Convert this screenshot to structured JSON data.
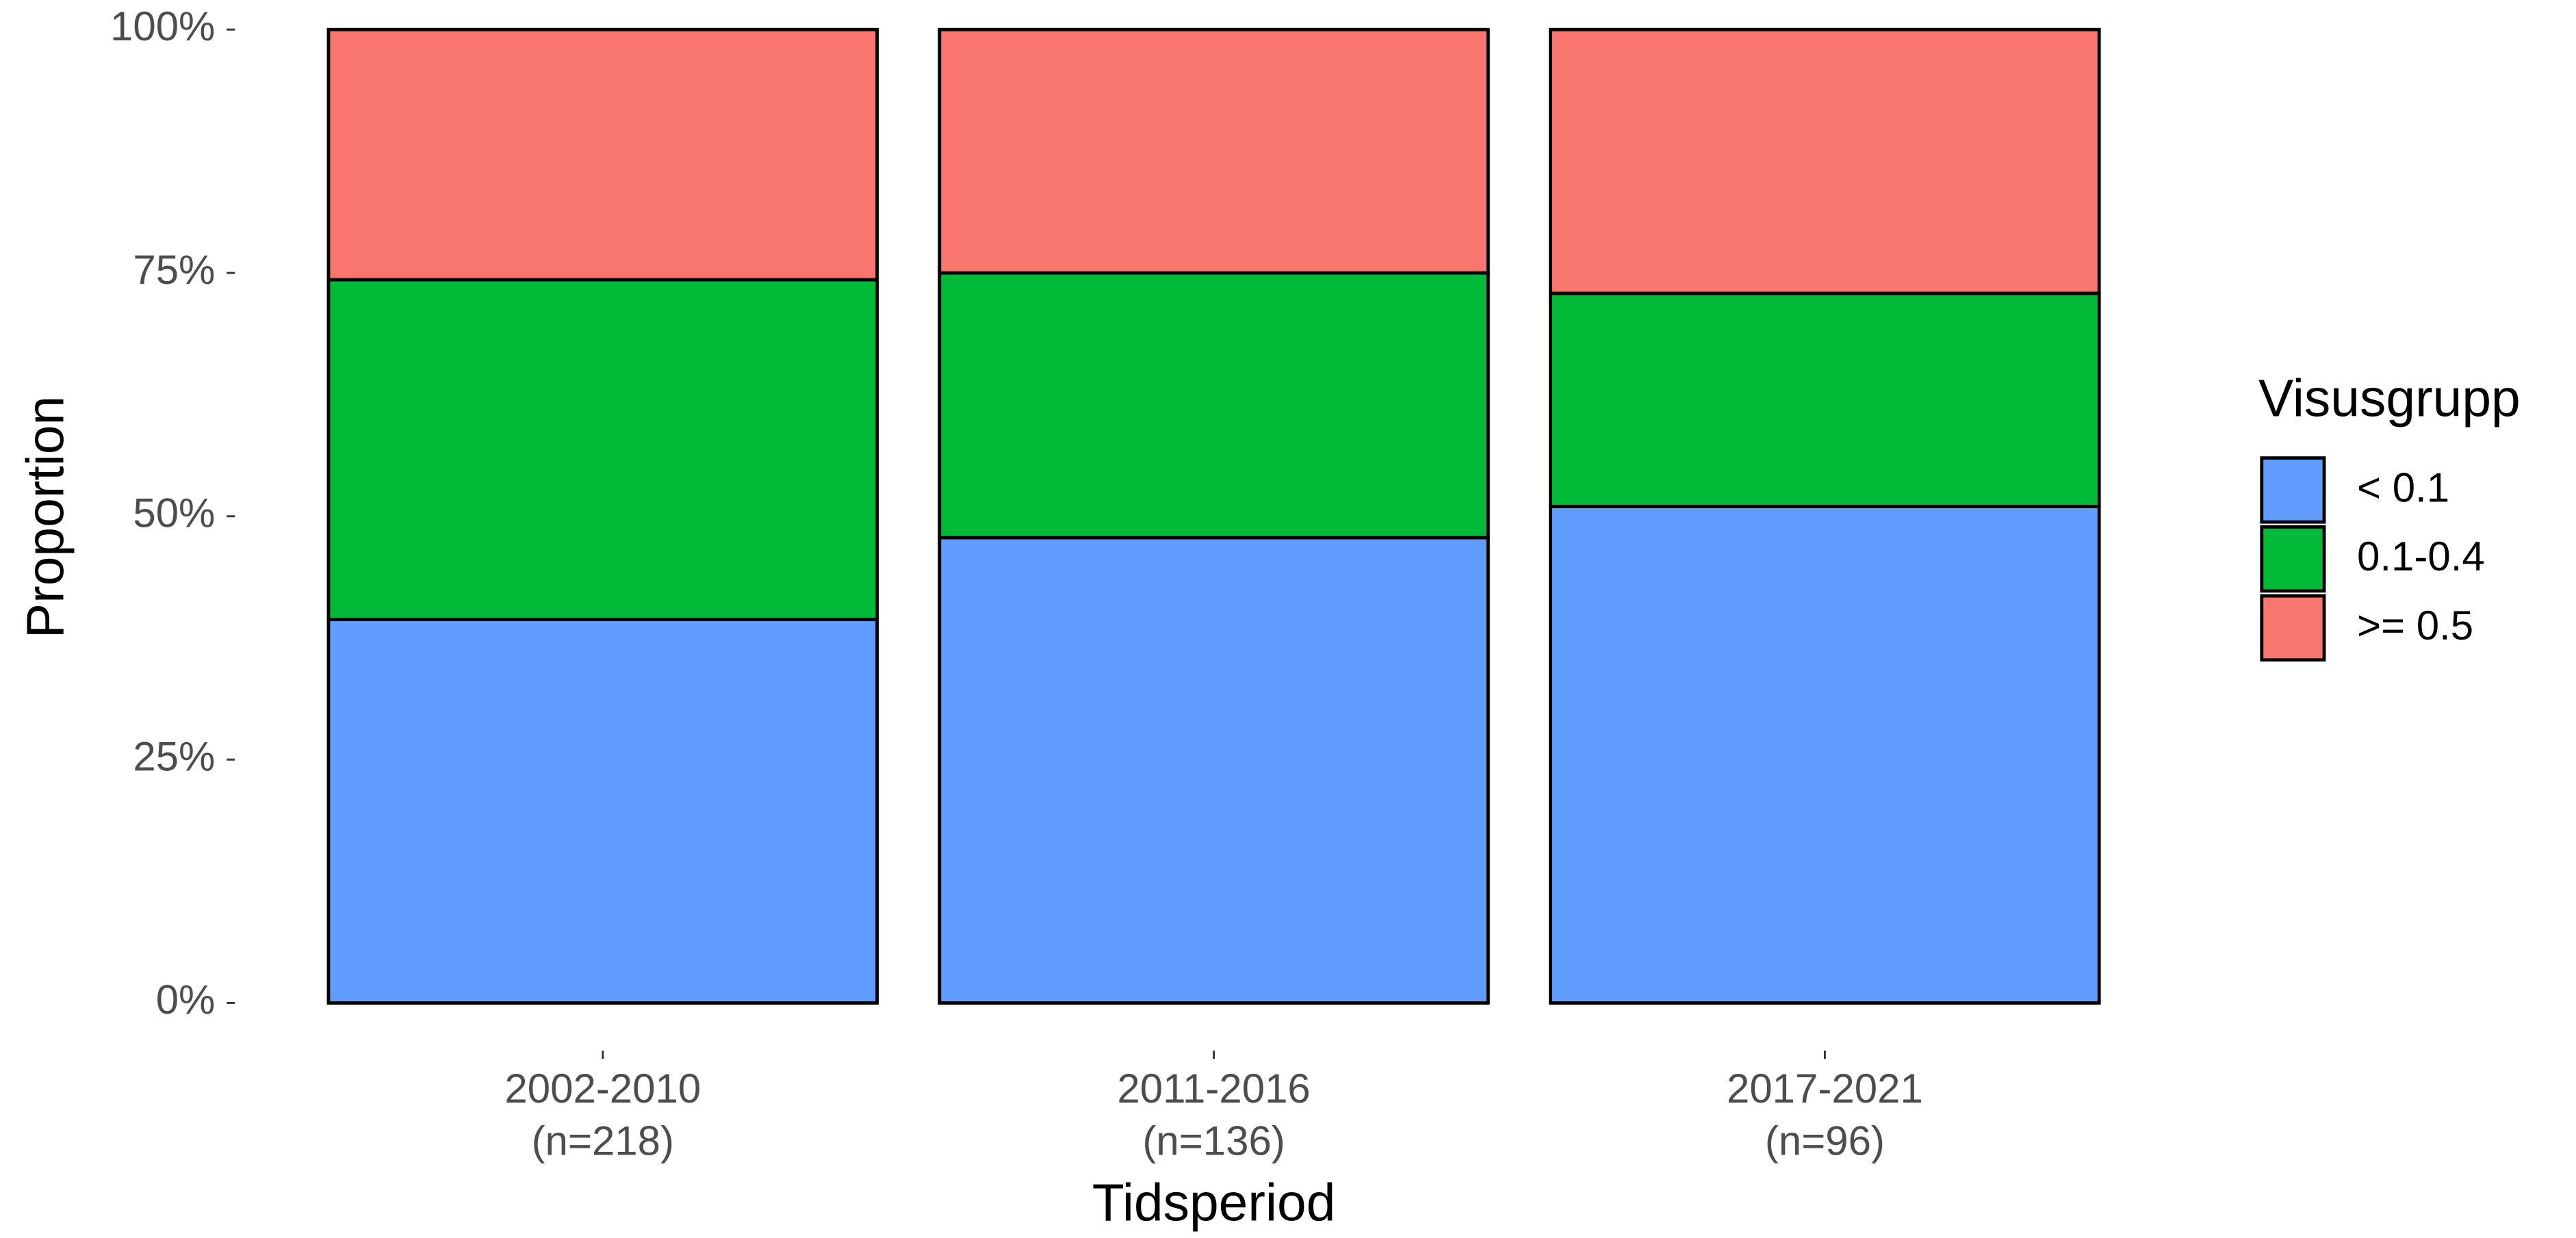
{
  "chart_data": {
    "type": "stacked_bar",
    "x_label": "Tidsperiod",
    "y_label": "Proportion",
    "legend_title": "Visusgrupp",
    "legend_position": "right",
    "categories": [
      [
        "2002-2010",
        "(n=218)"
      ],
      [
        "2011-2016",
        "(n=136)"
      ],
      [
        "2017-2021",
        "(n=96)"
      ]
    ],
    "series": [
      {
        "name": "< 0.1",
        "color": "#619CFF",
        "values": [
          39.4,
          47.8,
          51.0
        ]
      },
      {
        "name": "0.1-0.4",
        "color": "#00BA38",
        "values": [
          34.9,
          27.2,
          21.9
        ]
      },
      {
        "name": ">= 0.5",
        "color": "#F8766D",
        "values": [
          25.7,
          25.0,
          27.1
        ]
      }
    ],
    "ylim": [
      0,
      100
    ],
    "yticks": [
      {
        "value": 0,
        "label": "0%"
      },
      {
        "value": 25,
        "label": "25%"
      },
      {
        "value": 50,
        "label": "50%"
      },
      {
        "value": 75,
        "label": "75%"
      },
      {
        "value": 100,
        "label": "100%"
      }
    ],
    "grid": false
  }
}
